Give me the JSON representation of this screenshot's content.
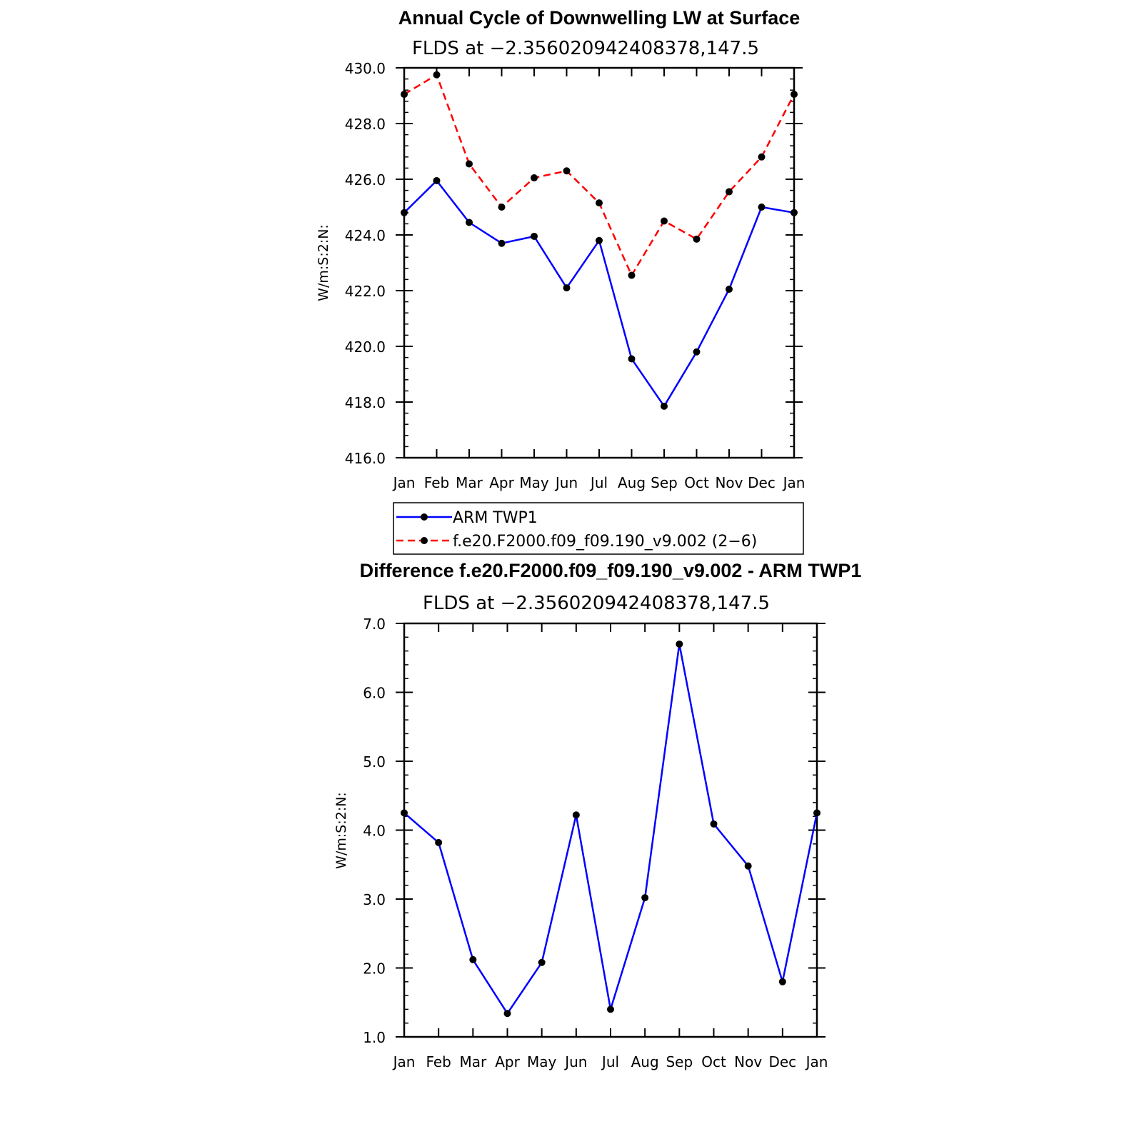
{
  "chart_data": [
    {
      "type": "line",
      "title": "Annual Cycle of Downwelling LW at Surface",
      "subtitle": "FLDS at −2.356020942408378,147.5",
      "ylabel": "W/m:S:2:N:",
      "xlabel": "",
      "categories": [
        "Jan",
        "Feb",
        "Mar",
        "Apr",
        "May",
        "Jun",
        "Jul",
        "Aug",
        "Sep",
        "Oct",
        "Nov",
        "Dec",
        "Jan"
      ],
      "ylim": [
        416.0,
        430.0
      ],
      "yticks": [
        "416.0",
        "418.0",
        "420.0",
        "422.0",
        "424.0",
        "426.0",
        "428.0",
        "430.0"
      ],
      "ytick_values": [
        416,
        418,
        420,
        422,
        424,
        426,
        428,
        430
      ],
      "minor_step": 0.4,
      "grid": false,
      "legend_position": "below",
      "series": [
        {
          "name": "ARM TWP1",
          "color": "#0000ff",
          "dash": "solid",
          "values": [
            424.8,
            425.95,
            424.45,
            423.7,
            423.95,
            422.1,
            423.8,
            419.55,
            417.85,
            419.8,
            422.05,
            425.0,
            424.8
          ]
        },
        {
          "name": "f.e20.F2000.f09_f09.190_v9.002 (2−6)",
          "color": "#ff0000",
          "dash": "dashed",
          "values": [
            429.05,
            429.75,
            426.55,
            425.0,
            426.05,
            426.3,
            425.15,
            422.55,
            424.5,
            423.85,
            425.55,
            426.8,
            429.05
          ]
        }
      ]
    },
    {
      "type": "line",
      "title": "Difference f.e20.F2000.f09_f09.190_v9.002 - ARM TWP1",
      "subtitle": "FLDS at −2.356020942408378,147.5",
      "ylabel": "W/m:S:2:N:",
      "xlabel": "",
      "categories": [
        "Jan",
        "Feb",
        "Mar",
        "Apr",
        "May",
        "Jun",
        "Jul",
        "Aug",
        "Sep",
        "Oct",
        "Nov",
        "Dec",
        "Jan"
      ],
      "ylim": [
        1.0,
        7.0
      ],
      "yticks": [
        "1.0",
        "2.0",
        "3.0",
        "4.0",
        "5.0",
        "6.0",
        "7.0"
      ],
      "ytick_values": [
        1,
        2,
        3,
        4,
        5,
        6,
        7
      ],
      "minor_step": 0.2,
      "grid": false,
      "series": [
        {
          "color": "#0000ff",
          "dash": "solid",
          "values": [
            4.25,
            3.82,
            2.12,
            1.34,
            2.08,
            4.22,
            1.4,
            3.02,
            6.7,
            4.09,
            3.48,
            1.8,
            4.25
          ]
        }
      ]
    }
  ]
}
